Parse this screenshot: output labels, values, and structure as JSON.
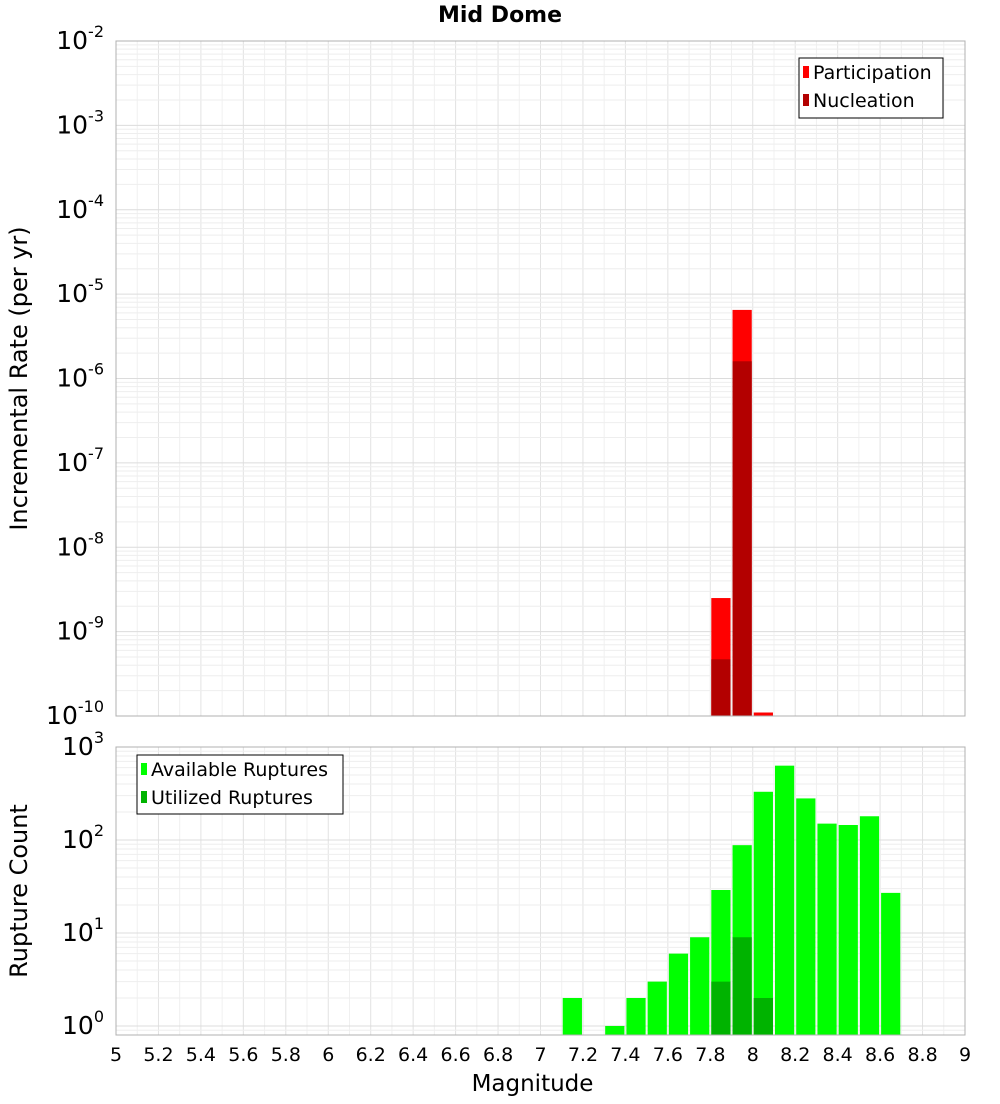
{
  "chart_data": [
    {
      "type": "bar",
      "title": "Mid Dome",
      "xlabel": "",
      "ylabel": "Incremental Rate (per yr)",
      "yscale": "log",
      "ylim": [
        1e-10,
        0.01
      ],
      "xlim": [
        5,
        9
      ],
      "x_tick_labels": [
        "5",
        "5.2",
        "5.4",
        "5.6",
        "5.8",
        "6",
        "6.2",
        "6.4",
        "6.6",
        "6.8",
        "7",
        "7.2",
        "7.4",
        "7.6",
        "7.8",
        "8",
        "8.2",
        "8.4",
        "8.6",
        "8.8",
        "9"
      ],
      "y_tick_base": "10",
      "y_tick_exponents": [
        "-2",
        "-3",
        "-4",
        "-5",
        "-6",
        "-7",
        "-8",
        "-9",
        "-10"
      ],
      "grid": true,
      "legend_position": "top-right",
      "bin_width": 0.1,
      "series": [
        {
          "name": "Participation",
          "color": "#ff0000",
          "x": [
            7.85,
            7.95,
            8.05
          ],
          "values": [
            2.5e-09,
            6.5e-06,
            1.1e-10
          ]
        },
        {
          "name": "Nucleation",
          "color": "#b30000",
          "x": [
            7.85,
            7.95
          ],
          "values": [
            4.7e-10,
            1.6e-06
          ]
        }
      ]
    },
    {
      "type": "bar",
      "title": "",
      "xlabel": "Magnitude",
      "ylabel": "Rupture Count",
      "yscale": "log",
      "ylim": [
        0.8,
        1000
      ],
      "xlim": [
        5,
        9
      ],
      "x_tick_labels": [
        "5",
        "5.2",
        "5.4",
        "5.6",
        "5.8",
        "6",
        "6.2",
        "6.4",
        "6.6",
        "6.8",
        "7",
        "7.2",
        "7.4",
        "7.6",
        "7.8",
        "8",
        "8.2",
        "8.4",
        "8.6",
        "8.8",
        "9"
      ],
      "y_tick_base": "10",
      "y_tick_exponents": [
        "3",
        "2",
        "1",
        "0"
      ],
      "grid": true,
      "legend_position": "top-left",
      "bin_width": 0.1,
      "series": [
        {
          "name": "Available Ruptures",
          "color": "#00ff00",
          "x": [
            7.15,
            7.35,
            7.45,
            7.55,
            7.65,
            7.75,
            7.85,
            7.95,
            8.05,
            8.15,
            8.25,
            8.35,
            8.45,
            8.55,
            8.65
          ],
          "values": [
            2,
            1,
            2,
            3,
            6,
            9,
            29,
            88,
            330,
            630,
            280,
            150,
            145,
            180,
            27
          ]
        },
        {
          "name": "Utilized Ruptures",
          "color": "#00b300",
          "x": [
            7.85,
            7.95,
            8.05
          ],
          "values": [
            3,
            9,
            2
          ]
        }
      ]
    }
  ]
}
